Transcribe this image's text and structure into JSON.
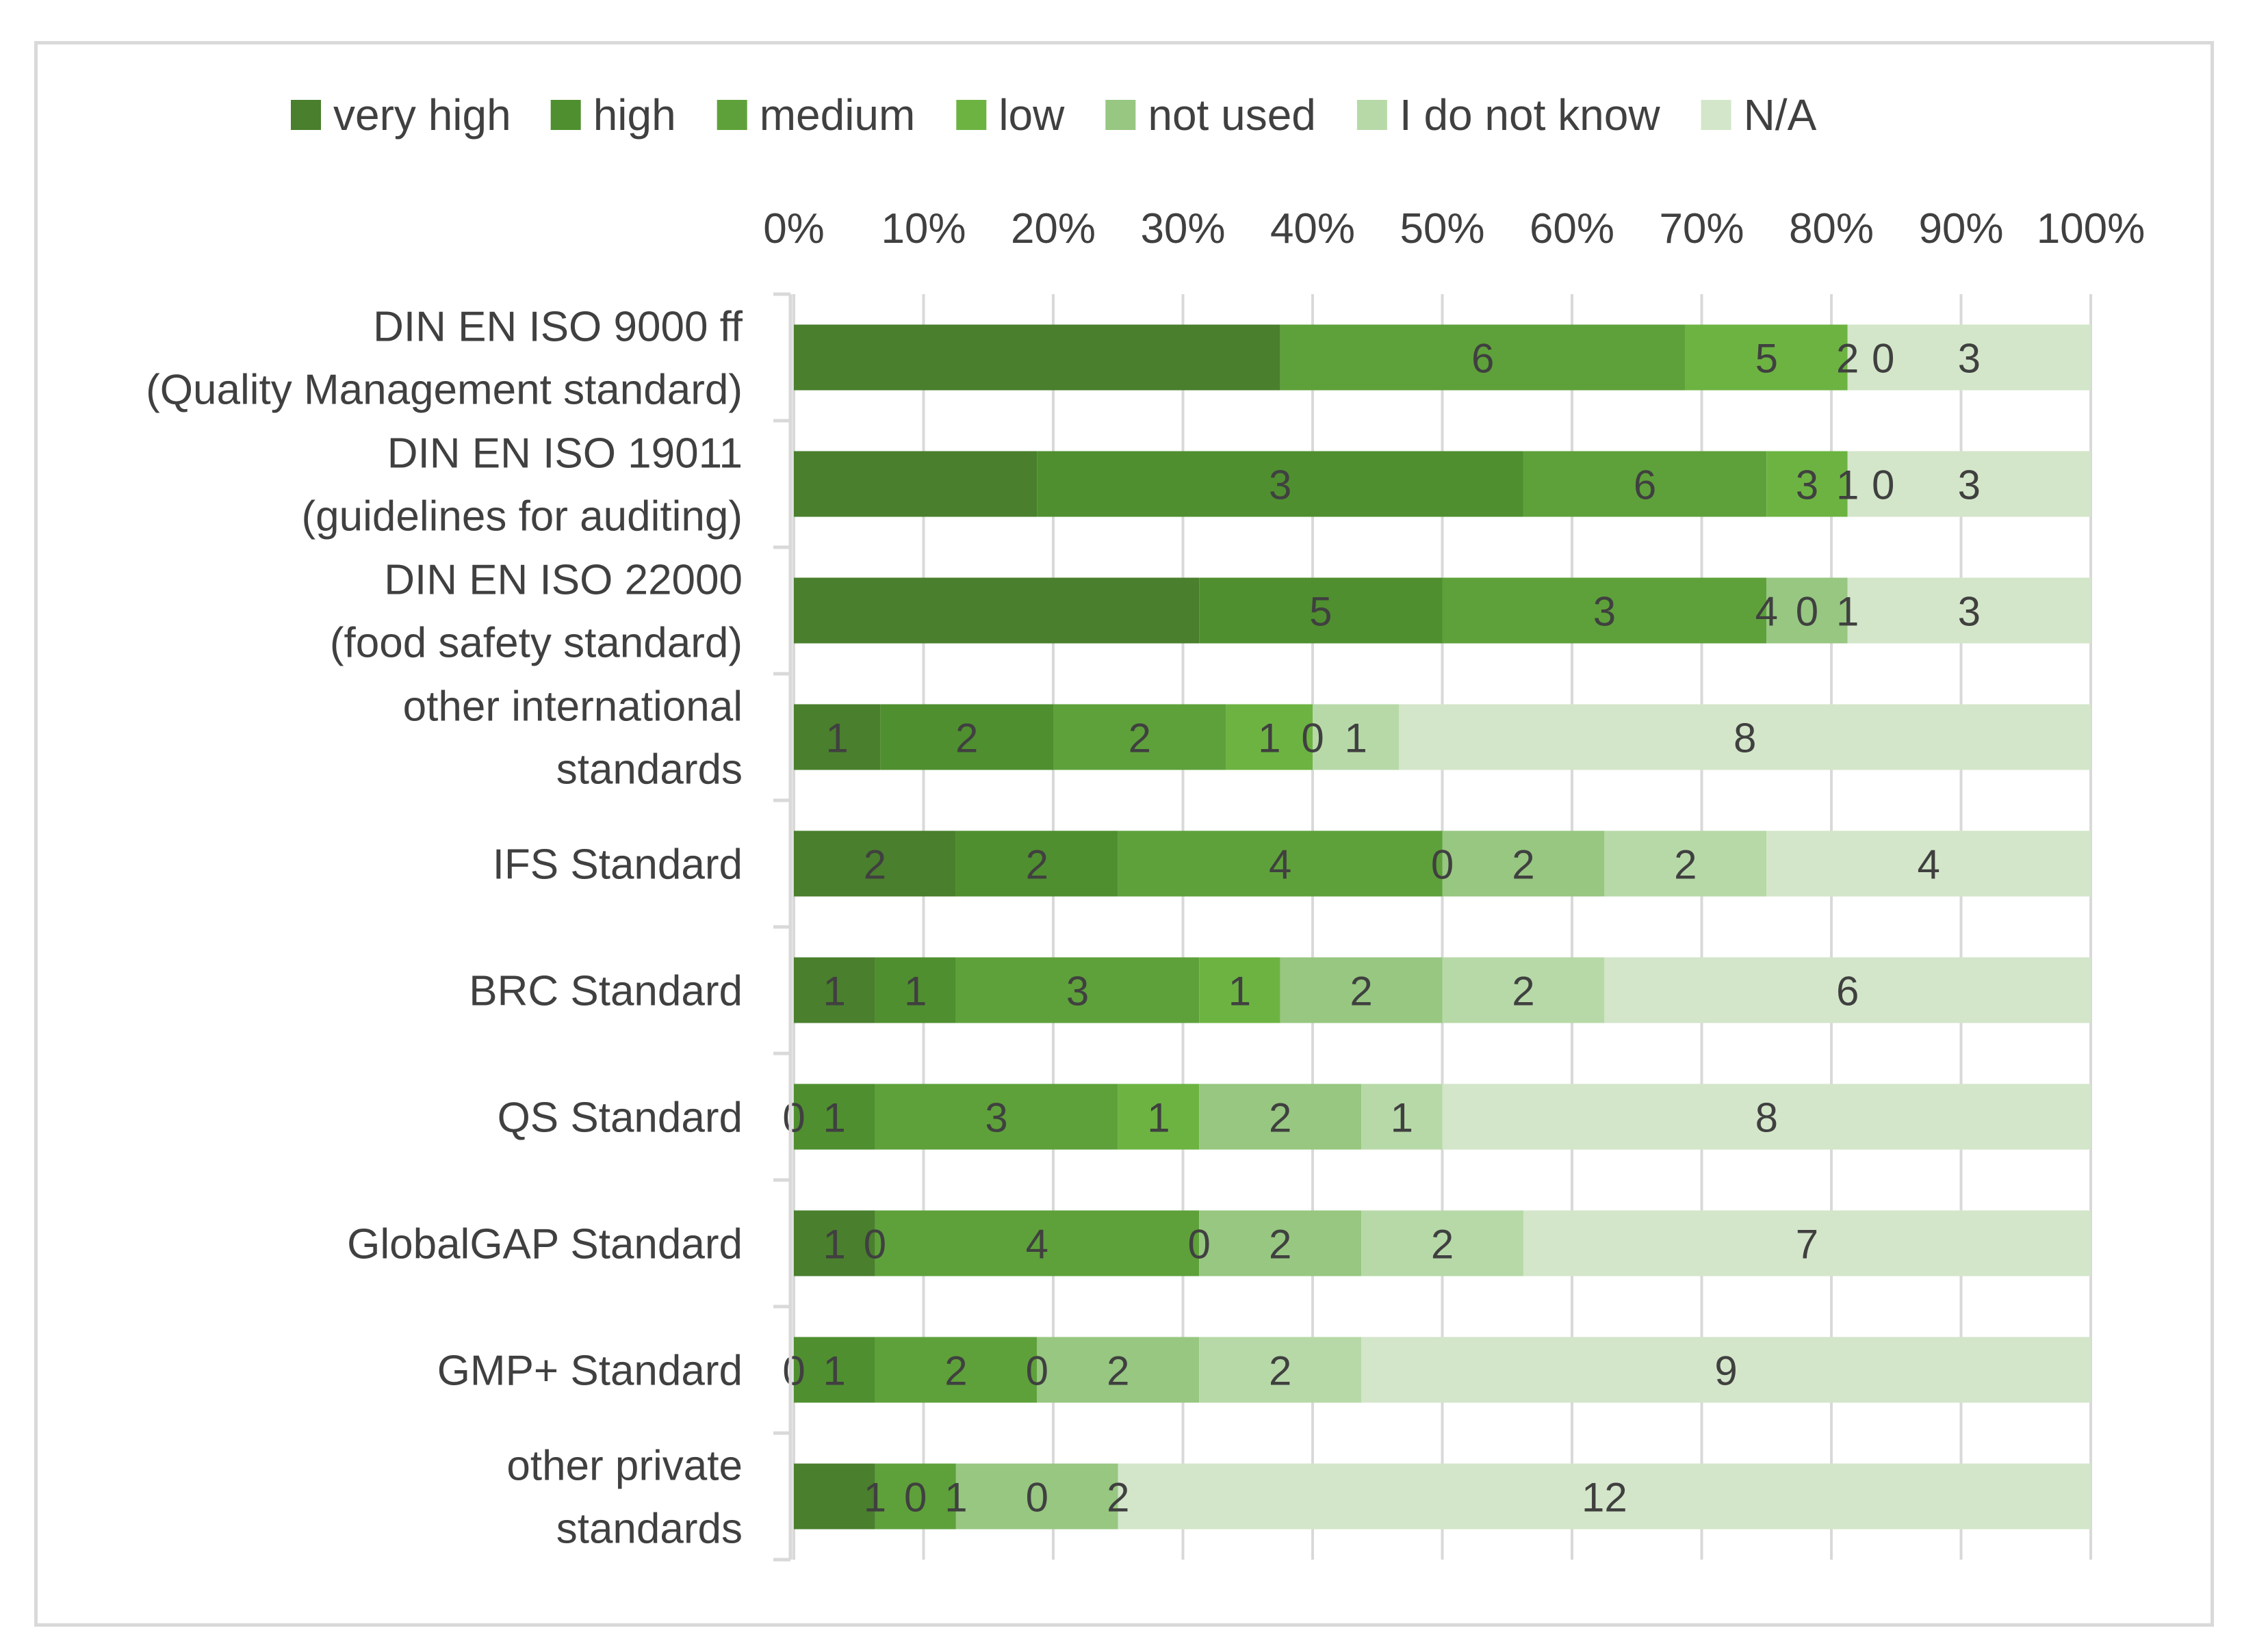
{
  "chart_data": {
    "type": "bar",
    "orientation": "horizontal",
    "stacked": "percent",
    "title": "",
    "xlabel": "",
    "ylabel": "",
    "xlim": [
      0,
      100
    ],
    "x_ticks": [
      "0%",
      "10%",
      "20%",
      "30%",
      "40%",
      "50%",
      "60%",
      "70%",
      "80%",
      "90%",
      "100%"
    ],
    "grid": true,
    "legend_position": "top",
    "categories": [
      [
        "DIN EN ISO 9000 ff",
        "(Quality Management standard)"
      ],
      [
        "DIN EN ISO 19011",
        "(guidelines for auditing)"
      ],
      [
        "DIN EN ISO 22000",
        "(food safety standard)"
      ],
      [
        "other international",
        "standards"
      ],
      [
        "IFS Standard"
      ],
      [
        "BRC Standard"
      ],
      [
        "QS Standard"
      ],
      [
        "GlobalGAP Standard"
      ],
      [
        "GMP+ Standard"
      ],
      [
        "other private",
        "standards"
      ]
    ],
    "series": [
      {
        "name": "very high",
        "color": "#4a7f2d",
        "values": [
          6,
          3,
          5,
          1,
          2,
          1,
          0,
          1,
          0,
          1
        ]
      },
      {
        "name": "high",
        "color": "#4f8f2f",
        "values": [
          0,
          6,
          3,
          2,
          2,
          1,
          1,
          0,
          1,
          0
        ]
      },
      {
        "name": "medium",
        "color": "#5ea13a",
        "values": [
          5,
          3,
          4,
          2,
          4,
          3,
          3,
          4,
          2,
          1
        ]
      },
      {
        "name": "low",
        "color": "#6db342",
        "values": [
          2,
          1,
          0,
          1,
          0,
          1,
          1,
          0,
          0,
          0
        ]
      },
      {
        "name": "not used",
        "color": "#97c781",
        "values": [
          0,
          0,
          1,
          0,
          2,
          2,
          2,
          2,
          2,
          2
        ]
      },
      {
        "name": "I do not know",
        "color": "#b7d9a8",
        "values": [
          0,
          0,
          0,
          1,
          2,
          2,
          1,
          2,
          2,
          0
        ]
      },
      {
        "name": "N/A",
        "color": "#d3e6c9",
        "values": [
          3,
          3,
          3,
          8,
          4,
          6,
          8,
          7,
          9,
          12
        ]
      }
    ],
    "data_labels": [
      [
        "6",
        "5",
        "2",
        "0",
        "3"
      ],
      [
        "3",
        "6",
        "3",
        "1",
        "0",
        "3"
      ],
      [
        "5",
        "3",
        "4",
        "0",
        "1",
        "3"
      ],
      [
        "1",
        "2",
        "2",
        "1",
        "0",
        "1",
        "8"
      ],
      [
        "2",
        "2",
        "4",
        "0",
        "2",
        "2",
        "4"
      ],
      [
        "1",
        "1",
        "3",
        "1",
        "2",
        "2",
        "6"
      ],
      [
        "0",
        "1",
        "3",
        "1",
        "2",
        "1",
        "8"
      ],
      [
        "1",
        "0",
        "4",
        "0",
        "2",
        "2",
        "7"
      ],
      [
        "0",
        "1",
        "2",
        "0",
        "2",
        "2",
        "9"
      ],
      [
        "1",
        "0",
        "1",
        "0",
        "2",
        "12"
      ]
    ]
  }
}
